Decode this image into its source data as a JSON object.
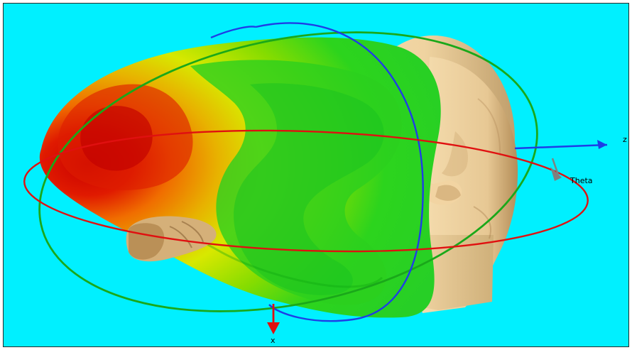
{
  "scene": {
    "background_color": "#00f0ff",
    "axis_labels": {
      "z": "z",
      "x": "x",
      "theta": "Theta"
    }
  },
  "colors": {
    "head": "#e8c999",
    "head_shadow": "#b9955e",
    "hot": "#d81200",
    "warm": "#f07d00",
    "mid": "#e3e800",
    "cool": "#26d21a",
    "red_axis": "#e01010",
    "blue_axis": "#1e3de6",
    "green_ring": "#1aa81a",
    "gray_axis": "#808080"
  }
}
